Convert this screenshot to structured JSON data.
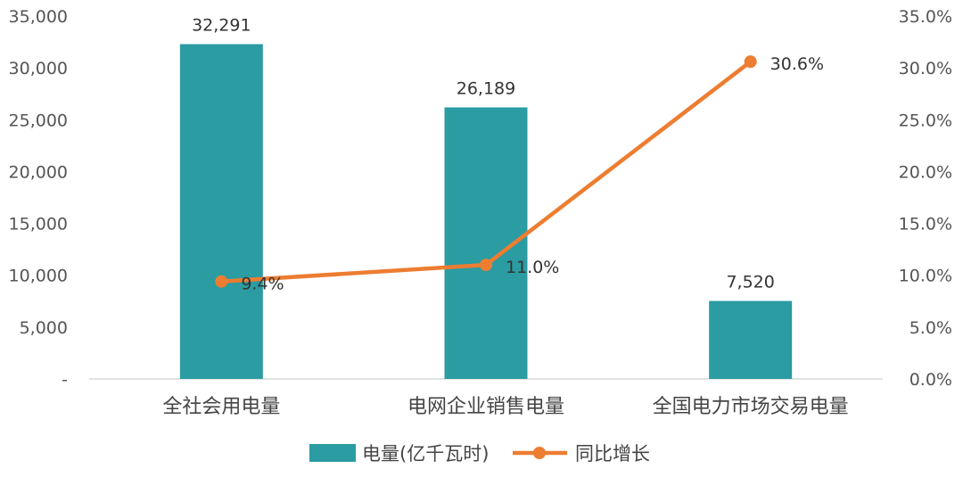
{
  "chart_data": {
    "type": "bar",
    "categories": [
      "全社会用电量",
      "电网企业销售电量",
      "全国电力市场交易电量"
    ],
    "series": [
      {
        "name": "电量(亿千瓦时)",
        "type": "bar",
        "axis": "left",
        "values": [
          32291,
          26189,
          7520
        ],
        "labels": [
          "32,291",
          "26,189",
          "7,520"
        ],
        "color": "#2a9ca2"
      },
      {
        "name": "同比增长",
        "type": "line",
        "axis": "right",
        "values": [
          9.4,
          11.0,
          30.6
        ],
        "labels": [
          "9.4%",
          "11.0%",
          "30.6%"
        ],
        "color": "#ed7d31"
      }
    ],
    "ylim_left": [
      0,
      35000
    ],
    "ylim_right": [
      0,
      35
    ],
    "yticks_left": [
      "-",
      "5,000",
      "10,000",
      "15,000",
      "20,000",
      "25,000",
      "30,000",
      "35,000"
    ],
    "yticks_right": [
      "0.0%",
      "5.0%",
      "10.0%",
      "15.0%",
      "20.0%",
      "25.0%",
      "30.0%",
      "35.0%"
    ],
    "grid": false,
    "legend_position": "bottom"
  }
}
